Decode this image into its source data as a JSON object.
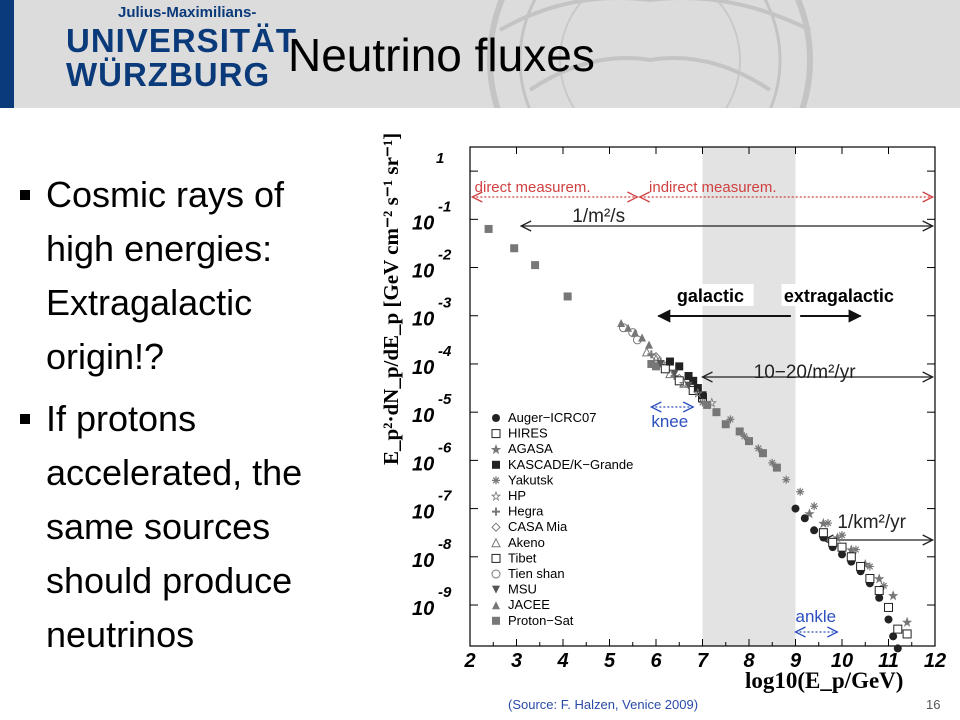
{
  "header": {
    "logo_line1": "Julius-Maximilians-",
    "logo_line2": "UNIVERSITÄT",
    "logo_line3": "WÜRZBURG",
    "title": "Neutrino fluxes"
  },
  "bullets": [
    "Cosmic rays of high energies: Extragalactic origin!?",
    "If protons accelerated, the same sources should produce neutrinos"
  ],
  "footer": {
    "source": "(Source: F. Halzen, Venice 2009)",
    "slide_number": "16"
  },
  "chart_data": {
    "type": "scatter",
    "xlabel": "log10(E_p/GeV)",
    "ylabel": "E_p²·dN_p/dE_p [GeV cm⁻² s⁻¹ sr⁻¹]",
    "xlim": [
      2,
      12
    ],
    "x_ticks": [
      2,
      3,
      4,
      5,
      6,
      7,
      8,
      9,
      10,
      11,
      12
    ],
    "y_ticks": [
      {
        "value": 0,
        "base": "",
        "exp": "1"
      },
      {
        "value": -1,
        "base": "10",
        "exp": "-1"
      },
      {
        "value": -2,
        "base": "10",
        "exp": "-2"
      },
      {
        "value": -3,
        "base": "10",
        "exp": "-3"
      },
      {
        "value": -4,
        "base": "10",
        "exp": "-4"
      },
      {
        "value": -5,
        "base": "10",
        "exp": "-5"
      },
      {
        "value": -6,
        "base": "10",
        "exp": "-6"
      },
      {
        "value": -7,
        "base": "10",
        "exp": "-7"
      },
      {
        "value": -8,
        "base": "10",
        "exp": "-8"
      },
      {
        "value": -9,
        "base": "10",
        "exp": "-9"
      }
    ],
    "shaded_band": {
      "x": [
        7,
        9
      ]
    },
    "annotations": {
      "direct": "direct measurem.",
      "indirect": "indirect measurem.",
      "rate1": "1/m²/s",
      "rate2": "10−20/m²/yr",
      "rate3": "1/km²/yr",
      "knee": "knee",
      "ankle": "ankle",
      "galactic": "galactic",
      "extragalactic": "extragalactic"
    },
    "legend": [
      {
        "name": "Auger−ICRC07",
        "marker": "filled-circle"
      },
      {
        "name": "HIRES",
        "marker": "open-square"
      },
      {
        "name": "AGASA",
        "marker": "star"
      },
      {
        "name": "KASCADE/K−Grande",
        "marker": "filled-square"
      },
      {
        "name": "Yakutsk",
        "marker": "asterisk"
      },
      {
        "name": "HP",
        "marker": "open-star"
      },
      {
        "name": "Hegra",
        "marker": "open-cross"
      },
      {
        "name": "CASA Mia",
        "marker": "open-diamond"
      },
      {
        "name": "Akeno",
        "marker": "open-triangle"
      },
      {
        "name": "Tibet",
        "marker": "open-square"
      },
      {
        "name": "Tien shan",
        "marker": "open-circle"
      },
      {
        "name": "MSU",
        "marker": "down-triangle"
      },
      {
        "name": "JACEE",
        "marker": "filled-triangle"
      },
      {
        "name": "Proton−Sat",
        "marker": "grey-square"
      }
    ],
    "series": [
      {
        "name": "Proton−Sat",
        "points": [
          [
            2.4,
            -1.2
          ],
          [
            2.95,
            -1.6
          ],
          [
            3.4,
            -1.95
          ],
          [
            4.1,
            -2.6
          ],
          [
            5.9,
            -4.0
          ],
          [
            6.0,
            -4.05
          ]
        ]
      },
      {
        "name": "JACEE",
        "points": [
          [
            5.25,
            -3.15
          ],
          [
            5.4,
            -3.25
          ],
          [
            5.55,
            -3.35
          ],
          [
            5.7,
            -3.45
          ],
          [
            5.85,
            -3.6
          ]
        ]
      },
      {
        "name": "Tien shan",
        "points": [
          [
            5.3,
            -3.25
          ],
          [
            5.5,
            -3.35
          ],
          [
            5.6,
            -3.5
          ]
        ]
      },
      {
        "name": "Akeno",
        "points": [
          [
            5.8,
            -3.75
          ],
          [
            6.0,
            -3.9
          ],
          [
            6.3,
            -4.2
          ],
          [
            6.6,
            -4.4
          ]
        ]
      },
      {
        "name": "Hegra",
        "points": [
          [
            5.9,
            -3.8
          ],
          [
            6.1,
            -3.95
          ],
          [
            6.4,
            -4.25
          ]
        ]
      },
      {
        "name": "CASA Mia",
        "points": [
          [
            6.0,
            -3.85
          ],
          [
            6.2,
            -4.05
          ],
          [
            6.5,
            -4.3
          ]
        ]
      },
      {
        "name": "Tibet",
        "points": [
          [
            6.2,
            -4.1
          ],
          [
            6.5,
            -4.35
          ],
          [
            6.8,
            -4.55
          ],
          [
            7.0,
            -4.7
          ]
        ]
      },
      {
        "name": "KASCADE/K−Grande",
        "points": [
          [
            6.3,
            -3.95
          ],
          [
            6.5,
            -4.05
          ],
          [
            6.7,
            -4.25
          ],
          [
            6.8,
            -4.35
          ],
          [
            6.9,
            -4.5
          ],
          [
            7.0,
            -4.65
          ]
        ]
      },
      {
        "name": "HP",
        "points": [
          [
            6.6,
            -4.4
          ],
          [
            6.9,
            -4.6
          ],
          [
            7.2,
            -4.8
          ]
        ]
      },
      {
        "name": "MSU",
        "points": [
          [
            6.1,
            -4.0
          ],
          [
            6.4,
            -4.2
          ],
          [
            6.7,
            -4.45
          ]
        ]
      },
      {
        "name": "Yakutsk",
        "points": [
          [
            7.0,
            -4.8
          ],
          [
            7.3,
            -5.0
          ],
          [
            7.6,
            -5.15
          ],
          [
            7.9,
            -5.5
          ],
          [
            8.2,
            -5.75
          ],
          [
            8.5,
            -6.05
          ],
          [
            8.8,
            -6.4
          ],
          [
            9.1,
            -6.65
          ],
          [
            9.4,
            -6.95
          ],
          [
            9.7,
            -7.3
          ],
          [
            10.0,
            -7.55
          ],
          [
            10.3,
            -7.85
          ],
          [
            10.6,
            -8.2
          ],
          [
            10.9,
            -8.6
          ]
        ]
      },
      {
        "name": "AGASA",
        "points": [
          [
            9.3,
            -7.1
          ],
          [
            9.6,
            -7.3
          ],
          [
            9.9,
            -7.6
          ],
          [
            10.2,
            -7.85
          ],
          [
            10.5,
            -8.15
          ],
          [
            10.8,
            -8.45
          ],
          [
            11.1,
            -8.8
          ],
          [
            11.4,
            -9.35
          ]
        ]
      },
      {
        "name": "Auger−ICRC07",
        "points": [
          [
            9.0,
            -7.0
          ],
          [
            9.2,
            -7.2
          ],
          [
            9.4,
            -7.45
          ],
          [
            9.6,
            -7.6
          ],
          [
            9.8,
            -7.8
          ],
          [
            10.0,
            -7.95
          ],
          [
            10.2,
            -8.1
          ],
          [
            10.4,
            -8.3
          ],
          [
            10.6,
            -8.55
          ],
          [
            10.8,
            -8.85
          ],
          [
            11.0,
            -9.3
          ],
          [
            11.1,
            -9.65
          ],
          [
            11.2,
            -9.9
          ]
        ]
      },
      {
        "name": "HIRES",
        "points": [
          [
            9.6,
            -7.5
          ],
          [
            9.8,
            -7.7
          ],
          [
            10.0,
            -7.8
          ],
          [
            10.2,
            -8.0
          ],
          [
            10.4,
            -8.2
          ],
          [
            10.6,
            -8.45
          ],
          [
            10.8,
            -8.7
          ],
          [
            11.0,
            -9.05
          ],
          [
            11.2,
            -9.5
          ],
          [
            11.4,
            -9.6
          ]
        ]
      },
      {
        "name": "Proton−Sat (high)",
        "points": [
          [
            7.1,
            -4.85
          ],
          [
            7.3,
            -5.0
          ],
          [
            7.5,
            -5.25
          ],
          [
            7.8,
            -5.4
          ],
          [
            8.0,
            -5.6
          ],
          [
            8.3,
            -5.85
          ],
          [
            8.6,
            -6.15
          ]
        ]
      }
    ]
  }
}
